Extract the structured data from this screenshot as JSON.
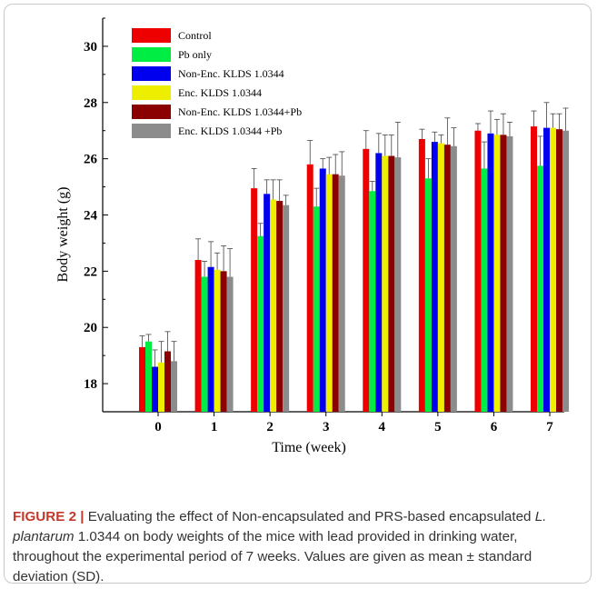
{
  "chart_data": {
    "type": "bar",
    "xlabel": "Time (week)",
    "ylabel": "Body weight (g)",
    "ylim": [
      17,
      31
    ],
    "yticks": [
      18,
      20,
      22,
      24,
      26,
      28,
      30
    ],
    "categories": [
      "0",
      "1",
      "2",
      "3",
      "4",
      "5",
      "6",
      "7"
    ],
    "legend_position": "top-left",
    "series": [
      {
        "name": "Control",
        "color": "#ee0000",
        "values": [
          19.3,
          22.4,
          24.95,
          25.8,
          26.35,
          26.7,
          27.0,
          27.15
        ],
        "errors": [
          0.4,
          0.75,
          0.7,
          0.85,
          0.65,
          0.35,
          0.25,
          0.55
        ]
      },
      {
        "name": "Pb only",
        "color": "#00ee44",
        "values": [
          19.5,
          21.8,
          23.25,
          24.3,
          24.85,
          25.3,
          25.65,
          25.75
        ],
        "errors": [
          0.25,
          0.55,
          0.45,
          0.65,
          0.35,
          0.7,
          0.95,
          1.05
        ]
      },
      {
        "name": "Non-Enc. KLDS 1.0344",
        "color": "#0000ee",
        "values": [
          18.6,
          22.15,
          24.75,
          25.65,
          26.2,
          26.6,
          26.9,
          27.1
        ],
        "errors": [
          0.6,
          0.9,
          0.5,
          0.35,
          0.7,
          0.35,
          0.8,
          0.9
        ]
      },
      {
        "name": "Enc. KLDS 1.0344",
        "color": "#eeee00",
        "values": [
          18.75,
          22.05,
          24.55,
          25.45,
          26.1,
          26.55,
          26.85,
          27.1
        ],
        "errors": [
          0.75,
          0.6,
          0.7,
          0.6,
          0.75,
          0.3,
          0.55,
          0.5
        ]
      },
      {
        "name": "Non-Enc. KLDS 1.0344+Pb",
        "color": "#8b0000",
        "values": [
          19.15,
          22.0,
          24.5,
          25.45,
          26.1,
          26.5,
          26.85,
          27.05
        ],
        "errors": [
          0.7,
          0.9,
          0.75,
          0.7,
          0.75,
          0.95,
          0.75,
          0.55
        ]
      },
      {
        "name": "Enc. KLDS 1.0344 +Pb",
        "color": "#8c8c8c",
        "values": [
          18.8,
          21.8,
          24.35,
          25.4,
          26.05,
          26.45,
          26.8,
          27.0
        ],
        "errors": [
          0.7,
          1.0,
          0.35,
          0.85,
          1.25,
          0.65,
          0.5,
          0.8
        ]
      }
    ]
  },
  "caption": {
    "label": "FIGURE 2 |",
    "text_before": " Evaluating the effect of Non-encapsulated and PRS-based encapsulated ",
    "species": "L. plantarum",
    "text_after": " 1.0344 on body weights of the mice with lead provided in drinking water, throughout the experimental period of 7 weeks. Values are given as mean ± standard deviation (SD)."
  }
}
